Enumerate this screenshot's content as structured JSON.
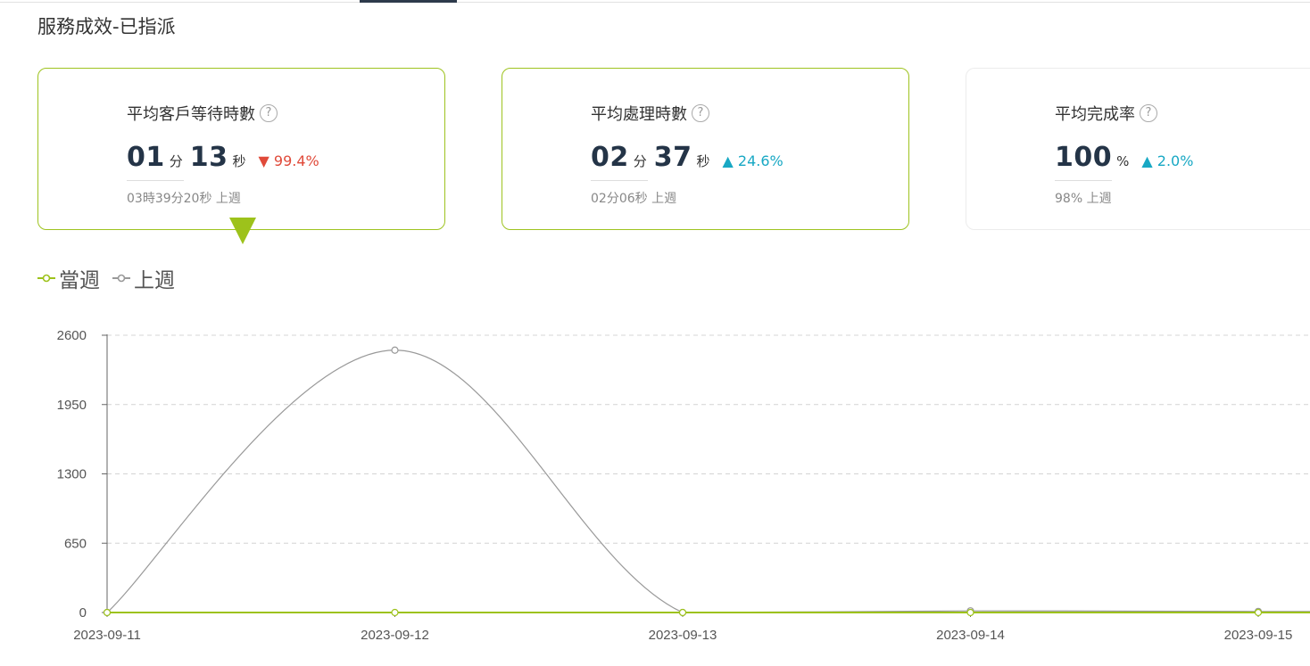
{
  "header": {
    "title": "服務成效-已指派"
  },
  "cards": [
    {
      "label": "平均客戶等待時數",
      "value": [
        {
          "num": "01",
          "unit": "分"
        },
        {
          "num": "13",
          "unit": "秒"
        }
      ],
      "change": "▼ 99.4%",
      "direction": "down",
      "previous": "03時39分20秒 上週",
      "active": true
    },
    {
      "label": "平均處理時數",
      "value": [
        {
          "num": "02",
          "unit": "分"
        },
        {
          "num": "37",
          "unit": "秒"
        }
      ],
      "change": "▲ 24.6%",
      "direction": "up",
      "previous": "02分06秒 上週",
      "active": true
    },
    {
      "label": "平均完成率",
      "value": [
        {
          "num": "100",
          "unit": "%"
        }
      ],
      "change": "▲ 2.0%",
      "direction": "up",
      "previous": "98% 上週",
      "active": false
    }
  ],
  "help_icon": {
    "icon": "question-circle-icon",
    "glyph": "?"
  },
  "colors": {
    "accent": "#9dc21b",
    "down": "#e04a3a",
    "up": "#18a8c4",
    "previous_series": "#999999"
  },
  "chart_data": {
    "type": "line",
    "categories": [
      "2023-09-11",
      "2023-09-12",
      "2023-09-13",
      "2023-09-14",
      "2023-09-15"
    ],
    "series": [
      {
        "name": "當週",
        "values": [
          0,
          0,
          0,
          0,
          0
        ],
        "color": "#9dc21b"
      },
      {
        "name": "上週",
        "values": [
          0,
          2460,
          0,
          15,
          10
        ],
        "color": "#999999"
      }
    ],
    "yticks": [
      0,
      650,
      1300,
      1950,
      2600
    ],
    "ylim": [
      0,
      2600
    ],
    "smooth": true,
    "grid": "horizontal dashed",
    "legend_position": "top-left"
  }
}
